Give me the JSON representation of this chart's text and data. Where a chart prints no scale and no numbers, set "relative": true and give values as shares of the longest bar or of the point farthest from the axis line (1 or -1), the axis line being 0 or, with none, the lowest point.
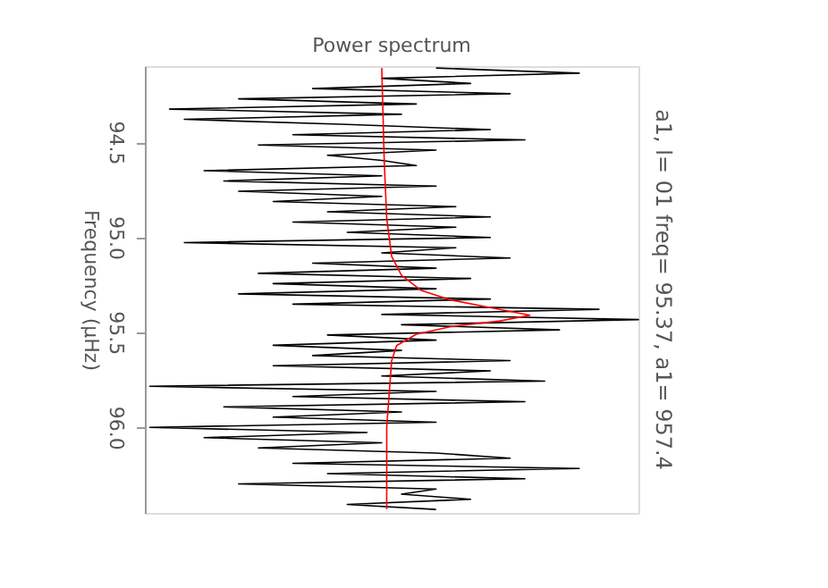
{
  "chart_data": {
    "type": "line",
    "title": "Power spectrum",
    "ylabel": "Frequency (μHz)",
    "orientation": "horizontal",
    "relative": true,
    "ylim": [
      96.45,
      94.1
    ],
    "yticks": [
      94.5,
      {
        "value": 95,
        "label": "95.0"
      },
      95.5,
      {
        "value": 96,
        "label": "96.0"
      }
    ],
    "annotations": [
      "a1, l= 01 freq= 95.37, a1= 957.4"
    ],
    "series": [
      {
        "color": "#000000",
        "x": [
          94.11,
          94.137,
          94.164,
          94.191,
          94.218,
          94.245,
          94.272,
          94.299,
          94.326,
          94.353,
          94.38,
          94.407,
          94.434,
          94.461,
          94.488,
          94.515,
          94.542,
          94.569,
          94.596,
          94.623,
          94.65,
          94.677,
          94.704,
          94.731,
          94.758,
          94.785,
          94.812,
          94.839,
          94.866,
          94.893,
          94.92,
          94.947,
          94.974,
          95.001,
          95.028,
          95.055,
          95.082,
          95.109,
          95.136,
          95.163,
          95.19,
          95.217,
          95.244,
          95.271,
          95.298,
          95.325,
          95.352,
          95.379,
          95.406,
          95.433,
          95.46,
          95.487,
          95.514,
          95.541,
          95.568,
          95.595,
          95.622,
          95.649,
          95.676,
          95.703,
          95.73,
          95.757,
          95.784,
          95.811,
          95.838,
          95.865,
          95.892,
          95.919,
          95.946,
          95.973,
          96.0,
          96.027,
          96.054,
          96.081,
          96.108,
          96.135,
          96.162,
          96.189,
          96.216,
          96.243,
          96.27,
          96.297,
          96.324,
          96.351,
          96.378,
          96.405,
          96.432
        ],
        "values": [
          0.59,
          0.88,
          0.48,
          0.66,
          0.34,
          0.74,
          0.19,
          0.55,
          0.05,
          0.52,
          0.08,
          0.41,
          0.7,
          0.3,
          0.77,
          0.23,
          0.59,
          0.37,
          0.48,
          0.55,
          0.12,
          0.48,
          0.16,
          0.59,
          0.19,
          0.48,
          0.26,
          0.63,
          0.37,
          0.7,
          0.3,
          0.63,
          0.41,
          0.7,
          0.08,
          0.63,
          0.48,
          0.74,
          0.34,
          0.59,
          0.23,
          0.66,
          0.26,
          0.59,
          0.19,
          0.7,
          0.3,
          0.92,
          0.48,
          1.0,
          0.52,
          0.84,
          0.37,
          0.59,
          0.26,
          0.52,
          0.34,
          0.74,
          0.26,
          0.7,
          0.48,
          0.81,
          0.01,
          0.59,
          0.3,
          0.77,
          0.16,
          0.52,
          0.26,
          0.59,
          0.01,
          0.45,
          0.12,
          0.48,
          0.23,
          0.59,
          0.74,
          0.3,
          0.88,
          0.37,
          0.77,
          0.19,
          0.59,
          0.52,
          0.66,
          0.41,
          0.59
        ]
      },
      {
        "color": "#ff0000",
        "x": [
          94.11,
          94.6,
          94.9,
          95.1,
          95.2,
          95.28,
          95.33,
          95.37,
          95.41,
          95.44,
          95.47,
          95.51,
          95.57,
          95.65,
          96.0,
          96.43
        ],
        "values": [
          0.48,
          0.485,
          0.49,
          0.5,
          0.52,
          0.56,
          0.62,
          0.7,
          0.78,
          0.72,
          0.62,
          0.55,
          0.51,
          0.5,
          0.49,
          0.49
        ]
      }
    ]
  }
}
